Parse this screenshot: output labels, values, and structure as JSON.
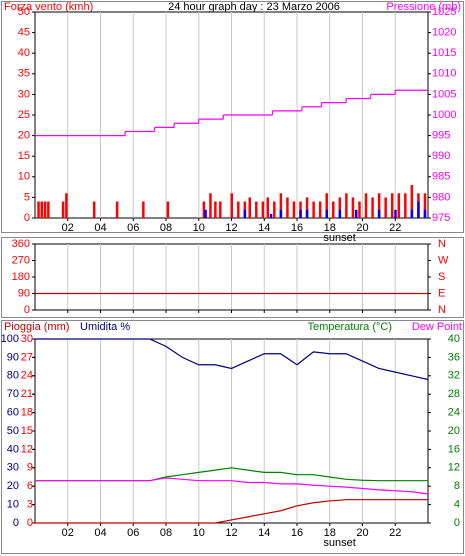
{
  "chart_data": [
    {
      "type": "combo",
      "title": "24 hour graph day : 23 Marzo 2006",
      "ylabel": "Forza vento (kmh)",
      "y2label": "Pressione (mb)",
      "xlim": [
        0,
        24
      ],
      "xticks": [
        {
          "value": 2,
          "label": "02"
        },
        {
          "value": 4,
          "label": "04"
        },
        {
          "value": 6,
          "label": "06"
        },
        {
          "value": 8,
          "label": "08"
        },
        {
          "value": 10,
          "label": "10"
        },
        {
          "value": 12,
          "label": "12"
        },
        {
          "value": 14,
          "label": "14"
        },
        {
          "value": 16,
          "label": "16"
        },
        {
          "value": 18,
          "label": "18"
        },
        {
          "value": 20,
          "label": "20"
        },
        {
          "value": 22,
          "label": "22"
        }
      ],
      "ylim": [
        0,
        50
      ],
      "yticks": [
        0,
        5,
        10,
        15,
        20,
        25,
        30,
        35,
        40,
        45,
        50
      ],
      "ycolor": "#ff0000",
      "y2lim": [
        975,
        1025
      ],
      "y2ticks": [
        975,
        980,
        985,
        990,
        995,
        1000,
        1005,
        1010,
        1015,
        1020,
        1025
      ],
      "y2color": "#ff00ff",
      "annotations": [
        {
          "text": "sunset",
          "x": 18.6
        }
      ],
      "grid": true,
      "series": [
        {
          "type": "bar",
          "color": "#ff0000",
          "x": [
            0.2,
            0.4,
            0.6,
            0.8,
            1.7,
            1.9,
            3.6,
            5.0,
            6.6,
            8.1,
            10.3,
            10.7,
            11.0,
            11.3,
            12.0,
            12.4,
            12.8,
            13.1,
            13.5,
            13.9,
            14.2,
            14.6,
            15.0,
            15.4,
            15.8,
            16.2,
            16.6,
            17.0,
            17.4,
            17.8,
            18.2,
            18.6,
            19.0,
            19.4,
            19.8,
            20.2,
            20.6,
            21.0,
            21.4,
            21.8,
            22.2,
            22.6,
            23.0,
            23.4,
            23.8
          ],
          "values": [
            4,
            4,
            4,
            4,
            4,
            6,
            4,
            4,
            4,
            4,
            4,
            6,
            4,
            4,
            6,
            4,
            4,
            5,
            4,
            4,
            5,
            4,
            6,
            5,
            4,
            4,
            5,
            4,
            4,
            6,
            4,
            5,
            6,
            5,
            4,
            6,
            5,
            6,
            5,
            6,
            6,
            6,
            8,
            6,
            6
          ]
        },
        {
          "type": "bar",
          "color": "#0000ff",
          "x": [
            10.4,
            12.8,
            14.4,
            15.0,
            16.2,
            16.6,
            17.8,
            18.6,
            19.6,
            21.0,
            22.0,
            23.0,
            23.4,
            23.8
          ],
          "values": [
            2,
            2,
            1,
            2,
            2,
            2,
            2,
            2,
            2,
            2,
            2,
            2,
            4,
            2
          ]
        },
        {
          "type": "step",
          "color": "#ff00ff",
          "axis": "y2",
          "x": [
            0,
            5.5,
            7.3,
            8.5,
            10,
            11.5,
            14.5,
            16.3,
            17.5,
            19,
            20.5,
            22
          ],
          "values": [
            995,
            996,
            997,
            998,
            999,
            1000,
            1001,
            1002,
            1003,
            1004,
            1005,
            1006
          ]
        }
      ]
    },
    {
      "type": "line",
      "xlim": [
        0,
        24
      ],
      "xticks": [
        {
          "value": 2,
          "label": "02"
        },
        {
          "value": 4,
          "label": "04"
        },
        {
          "value": 6,
          "label": "06"
        },
        {
          "value": 8,
          "label": "08"
        },
        {
          "value": 10,
          "label": "10"
        },
        {
          "value": 12,
          "label": "12"
        },
        {
          "value": 14,
          "label": "14"
        },
        {
          "value": 16,
          "label": "16"
        },
        {
          "value": 18,
          "label": "18"
        },
        {
          "value": 20,
          "label": "20"
        },
        {
          "value": 22,
          "label": "22"
        }
      ],
      "ylim": [
        0,
        360
      ],
      "yticks": [
        0,
        90,
        180,
        270,
        360
      ],
      "ycolor": "#ff0000",
      "y2lim": [
        0,
        360
      ],
      "y2ticks": [
        {
          "value": 0,
          "label": "N"
        },
        {
          "value": 90,
          "label": "E"
        },
        {
          "value": 180,
          "label": "S"
        },
        {
          "value": 270,
          "label": "W"
        },
        {
          "value": 360,
          "label": "N"
        }
      ],
      "y2color": "#ff0000",
      "grid": true,
      "series": [
        {
          "type": "line",
          "color": "#c00000",
          "x": [
            0,
            24
          ],
          "values": [
            90,
            90
          ]
        }
      ]
    },
    {
      "type": "line",
      "ylabel": "Umidita %",
      "y3label": "Pioggia (mm)",
      "y2label": "Temperatura (°C)",
      "y2label2": "Dew Point",
      "xlim": [
        0,
        24
      ],
      "xticks": [
        {
          "value": 2,
          "label": "02"
        },
        {
          "value": 4,
          "label": "04"
        },
        {
          "value": 6,
          "label": "06"
        },
        {
          "value": 8,
          "label": "08"
        },
        {
          "value": 10,
          "label": "10"
        },
        {
          "value": 12,
          "label": "12"
        },
        {
          "value": 14,
          "label": "14"
        },
        {
          "value": 16,
          "label": "16"
        },
        {
          "value": 18,
          "label": "18"
        },
        {
          "value": 20,
          "label": "20"
        },
        {
          "value": 22,
          "label": "22"
        }
      ],
      "ylim": [
        0,
        100
      ],
      "yticks": [
        0,
        10,
        20,
        30,
        40,
        50,
        60,
        70,
        80,
        90,
        100
      ],
      "ycolor": "#000080",
      "y3lim": [
        0,
        30
      ],
      "y3ticks": [
        0,
        3,
        6,
        9,
        12,
        15,
        18,
        21,
        24,
        27,
        30
      ],
      "y3color": "#ff0000",
      "y2lim": [
        0,
        40
      ],
      "y2ticks": [
        0,
        4,
        8,
        12,
        16,
        20,
        24,
        28,
        32,
        36,
        40
      ],
      "y2color": "#008000",
      "annotations": [
        {
          "text": "sunset",
          "x": 18.6
        }
      ],
      "grid": true,
      "x": [
        0,
        1,
        2,
        3,
        4,
        5,
        6,
        7,
        8,
        9,
        10,
        11,
        12,
        13,
        14,
        15,
        16,
        17,
        18,
        19,
        20,
        21,
        22,
        23,
        24
      ],
      "series": [
        {
          "type": "line",
          "color": "#000080",
          "values": [
            100,
            100,
            100,
            100,
            100,
            100,
            100,
            100,
            96,
            90,
            86,
            86,
            84,
            88,
            92,
            92,
            86,
            93,
            92,
            92,
            88,
            84,
            82,
            80,
            78
          ]
        },
        {
          "type": "line",
          "color": "#c00000",
          "axis": "y3",
          "values": [
            0,
            0,
            0,
            0,
            0,
            0,
            0,
            0,
            0,
            0,
            0,
            0,
            0.5,
            1,
            1.5,
            2,
            2.8,
            3.3,
            3.6,
            3.8,
            3.8,
            3.8,
            3.8,
            3.8,
            3.8
          ]
        },
        {
          "type": "line",
          "color": "#008000",
          "axis": "y2",
          "values": [
            9.2,
            9.2,
            9.2,
            9.2,
            9.2,
            9.2,
            9.2,
            9.2,
            10,
            10.5,
            11,
            11.5,
            12,
            11.5,
            11,
            11,
            10.5,
            10.5,
            10,
            9.5,
            9.3,
            9.2,
            9.2,
            9.2,
            9.2
          ]
        },
        {
          "type": "line",
          "color": "#ff00ff",
          "axis": "y2",
          "values": [
            9.2,
            9.2,
            9.2,
            9.2,
            9.2,
            9.2,
            9.2,
            9.2,
            9.8,
            9.5,
            9.2,
            9.2,
            9.2,
            8.8,
            8.8,
            8.5,
            8.5,
            8.2,
            8,
            7.8,
            7.5,
            7.2,
            7,
            6.8,
            6.3
          ]
        }
      ]
    }
  ]
}
